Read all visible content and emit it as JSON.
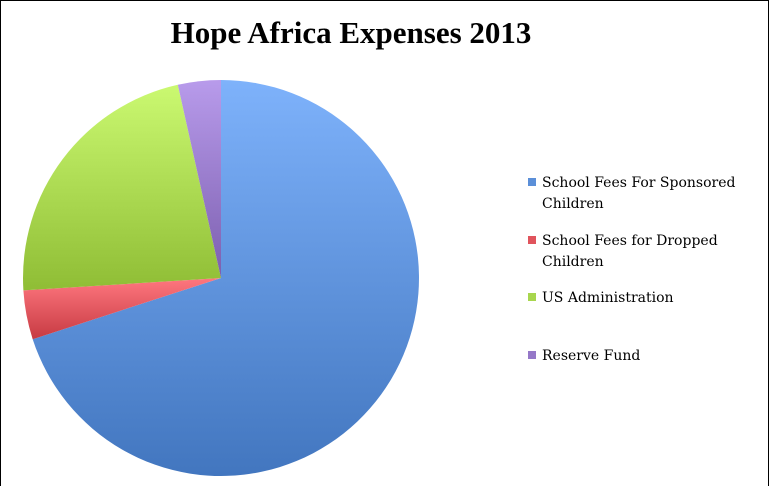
{
  "chart_data": {
    "type": "pie",
    "title": "Hope Africa Expenses 2013",
    "legend_position": "right",
    "slices": [
      {
        "label": "School Fees For Sponsored Children",
        "value": 70,
        "color": "#5b8fd8"
      },
      {
        "label": "School Fees for Dropped Children",
        "value": 4,
        "color": "#e0545c"
      },
      {
        "label": "US Administration",
        "value": 22.5,
        "color": "#a8d64e"
      },
      {
        "label": "Reserve Fund",
        "value": 3.5,
        "color": "#9578c8"
      }
    ]
  }
}
